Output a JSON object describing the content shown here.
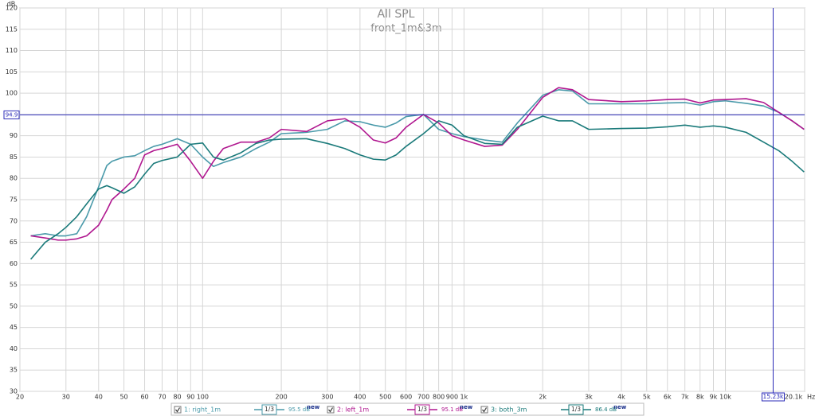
{
  "chart_data": {
    "type": "line",
    "title": "All SPL",
    "subtitle": "front_1m&3m",
    "x_unit": "Hz",
    "y_unit": "dB",
    "log_x": true,
    "grid": true,
    "xlim": [
      20,
      20100
    ],
    "ylim": [
      30,
      120
    ],
    "xticks": [
      20,
      30,
      40,
      50,
      60,
      70,
      80,
      90,
      100,
      200,
      300,
      400,
      500,
      600,
      700,
      800,
      900,
      {
        "value": 1000,
        "label": "1k"
      },
      {
        "value": 2000,
        "label": "2k"
      },
      {
        "value": 3000,
        "label": "3k"
      },
      {
        "value": 4000,
        "label": "4k"
      },
      {
        "value": 5000,
        "label": "5k"
      },
      {
        "value": 6000,
        "label": "6k"
      },
      {
        "value": 7000,
        "label": "7k"
      },
      {
        "value": 8000,
        "label": "8k"
      },
      {
        "value": 9000,
        "label": "9k"
      },
      {
        "value": 10000,
        "label": "10k"
      },
      {
        "value": 20100,
        "label": "20.1k"
      }
    ],
    "yticks": [
      30,
      35,
      40,
      45,
      50,
      55,
      60,
      65,
      70,
      75,
      80,
      85,
      90,
      95,
      100,
      105,
      110,
      115,
      120
    ],
    "cursor": {
      "x": {
        "value": 15230,
        "label": "15.23k"
      },
      "y": 94.9
    },
    "x": [
      22,
      25,
      28,
      30,
      33,
      36,
      40,
      43,
      45,
      50,
      55,
      60,
      65,
      70,
      80,
      90,
      100,
      110,
      120,
      140,
      160,
      180,
      200,
      250,
      300,
      350,
      400,
      450,
      500,
      550,
      600,
      700,
      800,
      900,
      1000,
      1200,
      1400,
      1600,
      2000,
      2300,
      2600,
      3000,
      4000,
      5000,
      6000,
      7000,
      8000,
      9000,
      10000,
      12000,
      14000,
      16000,
      18000,
      20000
    ],
    "series": [
      {
        "name": "1: right_1m",
        "color": "#4a9aaa",
        "smoothing": "1/3",
        "level": "95.5 dB",
        "tag": "new",
        "values": [
          66.5,
          67,
          66.5,
          66.5,
          67,
          71,
          78,
          83,
          84,
          85,
          85.3,
          86.5,
          87.5,
          88,
          89.3,
          88,
          85,
          82.8,
          83.7,
          85,
          87,
          88.5,
          90.5,
          90.8,
          91.5,
          93.5,
          93.3,
          92.5,
          92,
          93,
          94.5,
          95,
          91.5,
          90.5,
          89.8,
          89,
          88.5,
          93,
          99.5,
          100.8,
          100.5,
          97.5,
          97.5,
          97.5,
          97.7,
          97.8,
          97.2,
          98,
          98.2,
          97.6,
          97,
          95.5,
          93.5,
          91.5
        ]
      },
      {
        "name": "2: left_1m",
        "color": "#b0178f",
        "smoothing": "1/3",
        "level": "95.1 dB",
        "tag": "new",
        "values": [
          66.5,
          66,
          65.5,
          65.5,
          65.8,
          66.5,
          69,
          72.5,
          75,
          77.5,
          80,
          85.5,
          86.5,
          87,
          88,
          84,
          80,
          84,
          87,
          88.5,
          88.5,
          89.5,
          91.5,
          91,
          93.5,
          94,
          92,
          89,
          88.3,
          89.5,
          92,
          95,
          93,
          90,
          89,
          87.5,
          87.8,
          91.5,
          99,
          101.3,
          100.8,
          98.5,
          98,
          98.2,
          98.5,
          98.6,
          97.7,
          98.4,
          98.5,
          98.7,
          97.8,
          95.5,
          93.5,
          91.5
        ]
      },
      {
        "name": "3: both_3m",
        "color": "#1a7a7a",
        "smoothing": "1/3",
        "level": "86.4 dB",
        "tag": "new",
        "values": [
          61,
          65,
          67,
          68.5,
          71,
          74,
          77.5,
          78.3,
          77.8,
          76.5,
          78,
          81,
          83.5,
          84.2,
          85,
          88,
          88.3,
          85,
          84.3,
          86,
          88.2,
          89,
          89.2,
          89.3,
          88.2,
          87,
          85.5,
          84.5,
          84.3,
          85.5,
          87.5,
          90.5,
          93.5,
          92.5,
          90,
          88.2,
          88,
          92,
          94.6,
          93.5,
          93.5,
          91.5,
          91.7,
          91.8,
          92.1,
          92.5,
          92,
          92.3,
          92,
          90.8,
          88.5,
          86.5,
          84,
          81.5
        ]
      }
    ]
  }
}
